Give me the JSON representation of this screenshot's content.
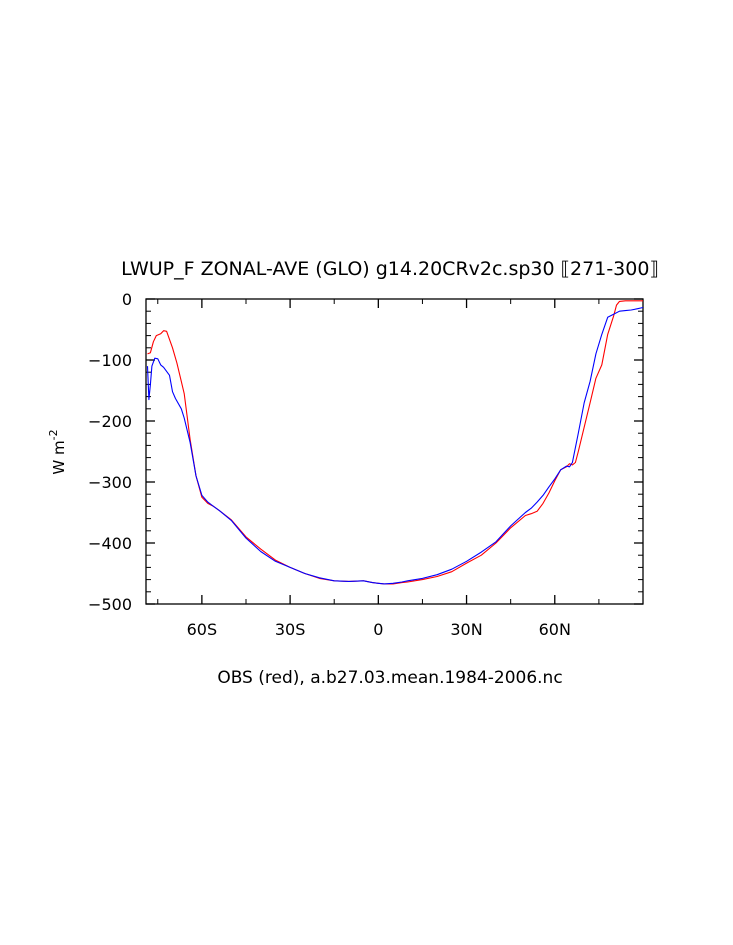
{
  "chart_data": {
    "type": "line",
    "title": "LWUP_F ZONAL-AVE (GLO) g14.20CRv2c.sp30 ⟦271-300⟧",
    "ylabel": "W m",
    "ylabel_exp": "-2",
    "xlabel": "OBS (red), a.b27.03.mean.1984-2006.nc",
    "xlim": [
      -79,
      90
    ],
    "ylim": [
      -500,
      0
    ],
    "grid": false,
    "x_ticks": [
      {
        "value": -60,
        "label": "60S"
      },
      {
        "value": -30,
        "label": "30S"
      },
      {
        "value": 0,
        "label": "0"
      },
      {
        "value": 30,
        "label": "30N"
      },
      {
        "value": 60,
        "label": "60N"
      }
    ],
    "y_ticks": [
      {
        "value": 0,
        "label": "0"
      },
      {
        "value": -100,
        "label": "−100"
      },
      {
        "value": -200,
        "label": "−200"
      },
      {
        "value": -300,
        "label": "−300"
      },
      {
        "value": -400,
        "label": "−400"
      },
      {
        "value": -500,
        "label": "−500"
      }
    ],
    "series": [
      {
        "color": "#ff0000",
        "x": [
          -78.5,
          -77.5,
          -76.5,
          -75.5,
          -74,
          -73,
          -72,
          -70,
          -68.5,
          -67,
          -66,
          -64,
          -62,
          -60,
          -58,
          -56,
          -54,
          -50,
          -45,
          -40,
          -35,
          -30,
          -25,
          -20,
          -15,
          -10,
          -5,
          -2,
          0,
          2,
          5,
          8,
          10,
          15,
          20,
          25,
          30,
          35,
          40,
          45,
          50,
          52,
          54,
          56,
          58,
          60,
          62,
          64,
          65,
          66,
          67,
          68,
          70,
          72,
          74,
          76,
          78,
          80,
          81,
          82,
          84,
          86,
          88,
          90
        ],
        "y": [
          -90,
          -88,
          -70,
          -60,
          -57,
          -52,
          -53,
          -80,
          -105,
          -135,
          -155,
          -230,
          -290,
          -325,
          -335,
          -340,
          -347,
          -362,
          -390,
          -410,
          -428,
          -440,
          -450,
          -458,
          -462,
          -463,
          -462,
          -465,
          -466,
          -467,
          -467,
          -465,
          -464,
          -460,
          -455,
          -447,
          -433,
          -420,
          -400,
          -375,
          -355,
          -352,
          -348,
          -335,
          -318,
          -298,
          -280,
          -275,
          -270,
          -272,
          -268,
          -250,
          -210,
          -170,
          -130,
          -108,
          -58,
          -28,
          -10,
          -4,
          -3,
          -3,
          -3,
          -3
        ]
      },
      {
        "color": "#0000ff",
        "x": [
          -78.5,
          -78,
          -77.5,
          -77,
          -76,
          -75,
          -74,
          -73,
          -71,
          -70,
          -69,
          -67,
          -66,
          -64,
          -62,
          -60,
          -58,
          -56,
          -54,
          -50,
          -45,
          -40,
          -35,
          -30,
          -25,
          -20,
          -15,
          -10,
          -5,
          -2,
          0,
          2,
          5,
          8,
          10,
          15,
          20,
          25,
          30,
          35,
          40,
          45,
          50,
          52,
          54,
          56,
          58,
          60,
          62,
          64,
          65,
          66,
          68,
          70,
          72,
          74,
          76,
          78,
          80,
          82,
          84,
          86,
          88,
          90
        ],
        "y": [
          -110,
          -165,
          -140,
          -110,
          -97,
          -98,
          -108,
          -112,
          -125,
          -152,
          -163,
          -180,
          -195,
          -235,
          -290,
          -322,
          -333,
          -340,
          -347,
          -363,
          -392,
          -414,
          -430,
          -440,
          -450,
          -457,
          -462,
          -463,
          -462,
          -465,
          -466,
          -467,
          -466,
          -464,
          -462,
          -458,
          -452,
          -443,
          -430,
          -415,
          -398,
          -372,
          -350,
          -343,
          -333,
          -322,
          -308,
          -295,
          -280,
          -274,
          -275,
          -268,
          -220,
          -170,
          -135,
          -90,
          -58,
          -30,
          -25,
          -20,
          -19,
          -18,
          -16,
          -14
        ]
      }
    ]
  }
}
